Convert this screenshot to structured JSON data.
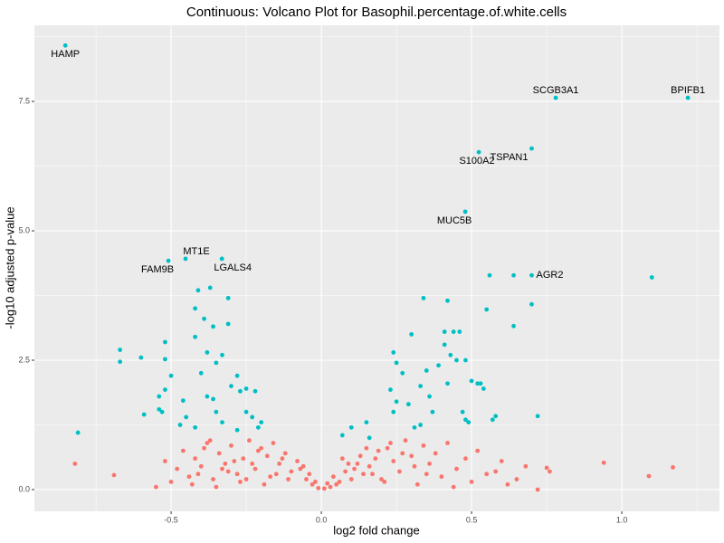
{
  "chart_data": {
    "type": "scatter",
    "title": "Continuous: Volcano Plot for Basophil.percentage.of.white.cells",
    "x_label": "log2 fold change",
    "y_label": "-log10 adjusted p-value",
    "xlim": [
      -0.955,
      1.325
    ],
    "ylim": [
      -0.42,
      8.97
    ],
    "xticks": [
      {
        "value": -0.5,
        "label": "-0.5"
      },
      {
        "value": 0,
        "label": "0.0"
      },
      {
        "value": 0.5,
        "label": "0.5"
      },
      {
        "value": 1,
        "label": "1.0"
      }
    ],
    "yticks": [
      {
        "value": 0,
        "label": "0.0"
      },
      {
        "value": 2.5,
        "label": "2.5"
      },
      {
        "value": 5,
        "label": "5.0"
      },
      {
        "value": 7.5,
        "label": "7.5"
      }
    ],
    "x_minor_ticks": [
      -0.75,
      -0.25,
      0.25,
      0.75,
      1.25
    ],
    "y_minor_ticks": [
      1.25,
      3.75,
      6.25,
      8.75
    ],
    "grid": true,
    "series": [
      {
        "color": "#F8766D",
        "x": [
          -0.82,
          -0.69,
          -0.55,
          0.94,
          1.09,
          1.17,
          0.76,
          0.75,
          0.72,
          0.6,
          0.65,
          0.68,
          0.55,
          0.52,
          0.5,
          0.48,
          0.45,
          0.42,
          0.4,
          0.38,
          0.36,
          0.34,
          0.32,
          0.3,
          0.28,
          0.26,
          0.24,
          0.22,
          0.2,
          0.18,
          0.16,
          0.14,
          0.12,
          0.1,
          0.08,
          0.06,
          0.05,
          0.04,
          0.03,
          0.02,
          0.01,
          0.35,
          0.31,
          0.27,
          0.23,
          0.19,
          0.15,
          0.11,
          0.07,
          0.44,
          0.58,
          0.62,
          0.21,
          0.17,
          0.13,
          0.09,
          -0.01,
          -0.02,
          -0.03,
          -0.04,
          -0.05,
          -0.06,
          -0.08,
          -0.1,
          -0.12,
          -0.14,
          -0.16,
          -0.18,
          -0.2,
          -0.22,
          -0.24,
          -0.26,
          -0.28,
          -0.3,
          -0.32,
          -0.34,
          -0.36,
          -0.38,
          -0.4,
          -0.42,
          -0.44,
          -0.46,
          -0.48,
          -0.5,
          -0.52,
          -0.11,
          -0.15,
          -0.19,
          -0.23,
          -0.27,
          -0.31,
          -0.35,
          -0.39,
          -0.43,
          -0.07,
          -0.13,
          -0.17,
          -0.21,
          -0.25,
          -0.29,
          -0.33,
          -0.37,
          -0.41
        ],
        "values": [
          0.5,
          0.28,
          0.05,
          0.52,
          0.26,
          0.43,
          0.35,
          0.42,
          0.0,
          0.55,
          0.2,
          0.45,
          0.3,
          0.75,
          0.15,
          0.6,
          0.4,
          0.9,
          0.25,
          0.7,
          0.5,
          0.85,
          0.1,
          0.65,
          0.95,
          0.35,
          0.55,
          0.8,
          0.2,
          0.6,
          0.45,
          0.3,
          0.5,
          0.2,
          0.35,
          0.15,
          0.1,
          0.25,
          0.05,
          0.12,
          0.02,
          0.3,
          0.45,
          0.7,
          0.9,
          0.75,
          0.8,
          0.4,
          0.6,
          0.05,
          0.35,
          0.1,
          0.15,
          0.3,
          0.65,
          0.5,
          0.03,
          0.15,
          0.1,
          0.3,
          0.2,
          0.45,
          0.55,
          0.35,
          0.7,
          0.5,
          0.9,
          0.65,
          0.8,
          0.4,
          0.95,
          0.6,
          0.3,
          0.85,
          0.5,
          0.7,
          0.2,
          0.9,
          0.45,
          0.6,
          0.25,
          0.75,
          0.4,
          0.15,
          0.55,
          0.2,
          0.3,
          0.1,
          0.5,
          0.15,
          0.35,
          0.05,
          0.8,
          0.1,
          0.4,
          0.6,
          0.25,
          0.75,
          0.2,
          0.55,
          0.4,
          0.95,
          0.3
        ]
      },
      {
        "color": "#00BFC4",
        "x": [
          -0.852,
          0.78,
          1.22,
          0.7,
          0.524,
          0.479,
          -0.452,
          -0.509,
          -0.331,
          0.7,
          -0.81,
          -0.67,
          -0.67,
          -0.6,
          -0.59,
          -0.52,
          -0.52,
          -0.5,
          -0.54,
          -0.53,
          -0.54,
          -0.52,
          -0.46,
          -0.45,
          -0.42,
          -0.41,
          -0.39,
          -0.37,
          -0.36,
          -0.31,
          -0.31,
          -0.42,
          -0.38,
          -0.35,
          -0.33,
          -0.28,
          -0.3,
          -0.27,
          -0.25,
          -0.22,
          -0.38,
          -0.35,
          -0.33,
          -0.25,
          -0.23,
          -0.21,
          -0.28,
          -0.42,
          -0.47,
          -0.2,
          -0.36,
          -0.4,
          0.07,
          0.1,
          0.15,
          0.16,
          0.23,
          0.24,
          0.25,
          0.24,
          0.25,
          0.27,
          0.29,
          0.3,
          0.31,
          0.33,
          0.33,
          0.34,
          0.35,
          0.36,
          0.37,
          0.39,
          0.41,
          0.41,
          0.42,
          0.43,
          0.44,
          0.45,
          0.46,
          0.47,
          0.48,
          0.49,
          0.5,
          0.52,
          0.53,
          0.54,
          0.55,
          0.56,
          0.57,
          0.58,
          0.64,
          0.64,
          0.7,
          0.72,
          1.1,
          0.48,
          0.42
        ],
        "values": [
          8.58,
          7.57,
          7.57,
          6.59,
          6.52,
          5.37,
          4.46,
          4.42,
          4.46,
          4.14,
          1.1,
          2.7,
          2.47,
          2.55,
          1.45,
          2.85,
          2.52,
          2.2,
          1.55,
          1.5,
          1.8,
          1.93,
          1.72,
          1.4,
          3.5,
          3.85,
          3.3,
          3.9,
          3.15,
          3.7,
          3.2,
          2.95,
          2.65,
          2.45,
          2.6,
          2.2,
          2.0,
          1.9,
          1.95,
          1.9,
          1.8,
          1.5,
          1.3,
          1.5,
          1.4,
          1.2,
          1.15,
          1.2,
          1.25,
          1.3,
          1.75,
          2.25,
          1.05,
          1.2,
          1.3,
          1.0,
          1.93,
          1.5,
          1.7,
          2.65,
          2.45,
          2.25,
          1.65,
          3.0,
          1.2,
          1.25,
          2.0,
          3.7,
          2.3,
          1.8,
          1.5,
          2.4,
          3.05,
          2.8,
          3.65,
          2.6,
          3.05,
          2.5,
          3.05,
          1.5,
          1.35,
          1.3,
          2.1,
          2.05,
          2.05,
          1.95,
          3.48,
          4.14,
          1.35,
          1.42,
          4.14,
          3.16,
          3.58,
          1.42,
          4.1,
          2.5,
          2.05
        ],
        "point_labels": [
          "HAMP",
          "SCGB3A1",
          "BPIFB1",
          "TSPAN1",
          "S100A2",
          "MUC5B",
          "MT1E",
          "FAM9B",
          "LGALS4",
          "AGR2",
          null,
          null,
          null,
          null,
          null,
          null,
          null,
          null,
          null,
          null,
          null,
          null,
          null,
          null,
          null,
          null,
          null,
          null,
          null,
          null,
          null,
          null,
          null,
          null,
          null,
          null,
          null,
          null,
          null,
          null,
          null,
          null,
          null,
          null,
          null,
          null,
          null,
          null,
          null,
          null,
          null,
          null,
          null,
          null,
          null,
          null,
          null,
          null,
          null,
          null,
          null,
          null,
          null,
          null,
          null,
          null,
          null,
          null,
          null,
          null,
          null,
          null,
          null,
          null,
          null,
          null,
          null,
          null,
          null,
          null,
          null,
          null,
          null,
          null,
          null,
          null,
          null,
          null,
          null,
          null,
          null,
          null,
          null,
          null,
          null,
          null,
          null
        ]
      }
    ]
  }
}
